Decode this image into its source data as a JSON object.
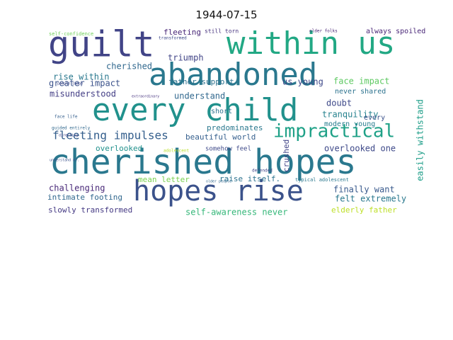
{
  "chart_data": {
    "type": "wordcloud",
    "title": "1944-07-15",
    "background": "#ffffff",
    "palette": "viridis",
    "words": [
      {
        "text": "cherished hopes",
        "color": "#2a788e"
      },
      {
        "text": "every child",
        "color": "#21918c"
      },
      {
        "text": "abandoned",
        "color": "#2a788e"
      },
      {
        "text": "within us",
        "color": "#22a884"
      },
      {
        "text": "guilt",
        "color": "#414487"
      },
      {
        "text": "hopes rise",
        "color": "#3b528b"
      },
      {
        "text": "impractical",
        "color": "#1fa187"
      },
      {
        "text": "fleeting impulses",
        "color": "#355f8d"
      },
      {
        "text": "self-awareness never",
        "color": "#35b779"
      },
      {
        "text": "overlooked one",
        "color": "#3e4989"
      },
      {
        "text": "slowly transformed",
        "color": "#443983"
      },
      {
        "text": "elderly father",
        "color": "#bddf26"
      },
      {
        "text": "rise within",
        "color": "#2a788e"
      },
      {
        "text": "greater impact",
        "color": "#3b528b"
      },
      {
        "text": "misunderstood",
        "color": "#433e85"
      },
      {
        "text": "cherished",
        "color": "#31688e"
      },
      {
        "text": "triumph",
        "color": "#414487"
      },
      {
        "text": "fleeting",
        "color": "#482677"
      },
      {
        "text": "father support",
        "color": "#2c728e"
      },
      {
        "text": "us young",
        "color": "#3e4989"
      },
      {
        "text": "face impact",
        "color": "#5ec962"
      },
      {
        "text": "never shared",
        "color": "#2c728e"
      },
      {
        "text": "doubt",
        "color": "#3e4989"
      },
      {
        "text": "tranquility",
        "color": "#26828e"
      },
      {
        "text": "modern young",
        "color": "#287d8e"
      },
      {
        "text": "every",
        "color": "#3b528b"
      },
      {
        "text": "easily withstand",
        "color": "#1f9e89"
      },
      {
        "text": "understand",
        "color": "#31688e"
      },
      {
        "text": "beautiful world",
        "color": "#355f8d"
      },
      {
        "text": "predominates",
        "color": "#2a788e"
      },
      {
        "text": "overlooked",
        "color": "#21918c"
      },
      {
        "text": "challenging",
        "color": "#482878"
      },
      {
        "text": "intimate footing",
        "color": "#31688e"
      },
      {
        "text": "mean letter",
        "color": "#7ad151"
      },
      {
        "text": "raise itself.",
        "color": "#2c728e"
      },
      {
        "text": "finally want",
        "color": "#38598c"
      },
      {
        "text": "felt extremely",
        "color": "#2a788e"
      },
      {
        "text": "crushed",
        "color": "#414487"
      },
      {
        "text": "somehow feel",
        "color": "#3e4989"
      },
      {
        "text": "always spoiled",
        "color": "#482677"
      },
      {
        "text": "short",
        "color": "#2c728e"
      },
      {
        "text": "still torn",
        "color": "#46327e"
      },
      {
        "text": "self-confidence",
        "color": "#6ece58"
      },
      {
        "text": "people shape",
        "color": "#3e4989"
      },
      {
        "text": "face life",
        "color": "#355f8d"
      },
      {
        "text": "guided entirely",
        "color": "#31688e"
      },
      {
        "text": "extraordinary",
        "color": "#46337f"
      },
      {
        "text": "typical adolescent",
        "color": "#2a788e"
      },
      {
        "text": "defended",
        "color": "#404688"
      },
      {
        "text": "older folks",
        "color": "#482475"
      },
      {
        "text": "transformed",
        "color": "#3e4989"
      },
      {
        "text": "older people",
        "color": "#31688e"
      },
      {
        "text": "adolescent",
        "color": "#b8de29"
      },
      {
        "text": "understand mr.",
        "color": "#3b528b"
      },
      {
        "text": "directing",
        "color": "#414487"
      }
    ]
  }
}
